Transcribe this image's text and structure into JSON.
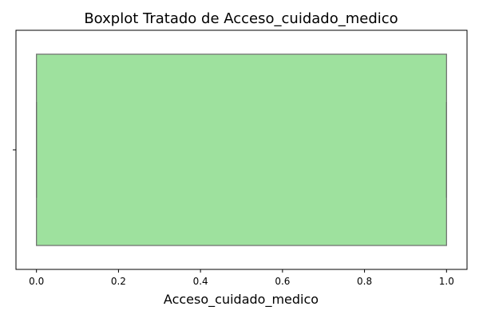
{
  "chart_data": {
    "type": "boxplot",
    "title": "Boxplot Tratado de Acceso_cuidado_medico",
    "xlabel": "Acceso_cuidado_medico",
    "ylabel": "",
    "orientation": "horizontal",
    "xlim": [
      -0.05,
      1.05
    ],
    "xticks": [
      0.0,
      0.2,
      0.4,
      0.6,
      0.8,
      1.0
    ],
    "xtick_labels": [
      "0.0",
      "0.2",
      "0.4",
      "0.6",
      "0.8",
      "1.0"
    ],
    "box": {
      "min": 0.0,
      "q1": 0.0,
      "median": 1.0,
      "q3": 1.0,
      "max": 1.0
    },
    "box_color": "#9ee19e",
    "edge_color": "#6b6b6b",
    "grid": false,
    "legend": "none"
  }
}
